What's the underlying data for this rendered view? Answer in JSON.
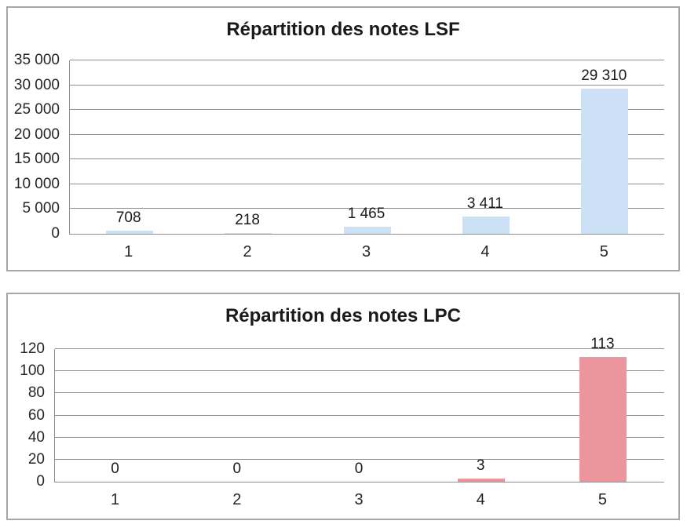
{
  "chart_data": [
    {
      "type": "bar",
      "title": "Répartition des notes LSF",
      "categories": [
        "1",
        "2",
        "3",
        "4",
        "5"
      ],
      "values": [
        708,
        218,
        1465,
        3411,
        29310
      ],
      "value_labels": [
        "708",
        "218",
        "1 465",
        "3 411",
        "29 310"
      ],
      "xlabel": "",
      "ylabel": "",
      "ylim": [
        0,
        35000
      ],
      "yticks": [
        {
          "value": 0,
          "label": "0"
        },
        {
          "value": 5000,
          "label": "5 000"
        },
        {
          "value": 10000,
          "label": "10 000"
        },
        {
          "value": 15000,
          "label": "15 000"
        },
        {
          "value": 20000,
          "label": "20 000"
        },
        {
          "value": 25000,
          "label": "25 000"
        },
        {
          "value": 30000,
          "label": "30 000"
        },
        {
          "value": 35000,
          "label": "35 000"
        }
      ],
      "grid": true,
      "legend": "none",
      "bar_color": "#cce1f5"
    },
    {
      "type": "bar",
      "title": "Répartition des notes LPC",
      "categories": [
        "1",
        "2",
        "3",
        "4",
        "5"
      ],
      "values": [
        0,
        0,
        0,
        3,
        113
      ],
      "value_labels": [
        "0",
        "0",
        "0",
        "3",
        "113"
      ],
      "xlabel": "",
      "ylabel": "",
      "ylim": [
        0,
        120
      ],
      "yticks": [
        {
          "value": 0,
          "label": "0"
        },
        {
          "value": 20,
          "label": "20"
        },
        {
          "value": 40,
          "label": "40"
        },
        {
          "value": 60,
          "label": "60"
        },
        {
          "value": 80,
          "label": "80"
        },
        {
          "value": 100,
          "label": "100"
        },
        {
          "value": 120,
          "label": "120"
        }
      ],
      "grid": true,
      "legend": "none",
      "bar_color": "#ec959c"
    }
  ],
  "colors": {
    "lsf_bar": "#cce1f5",
    "lpc_bar": "#ec959c",
    "gridline": "#8e8e8e",
    "chart_border": "#a6a6a6",
    "text": "#262626",
    "title_text": "#1a1a1a",
    "background": "#ffffff"
  }
}
